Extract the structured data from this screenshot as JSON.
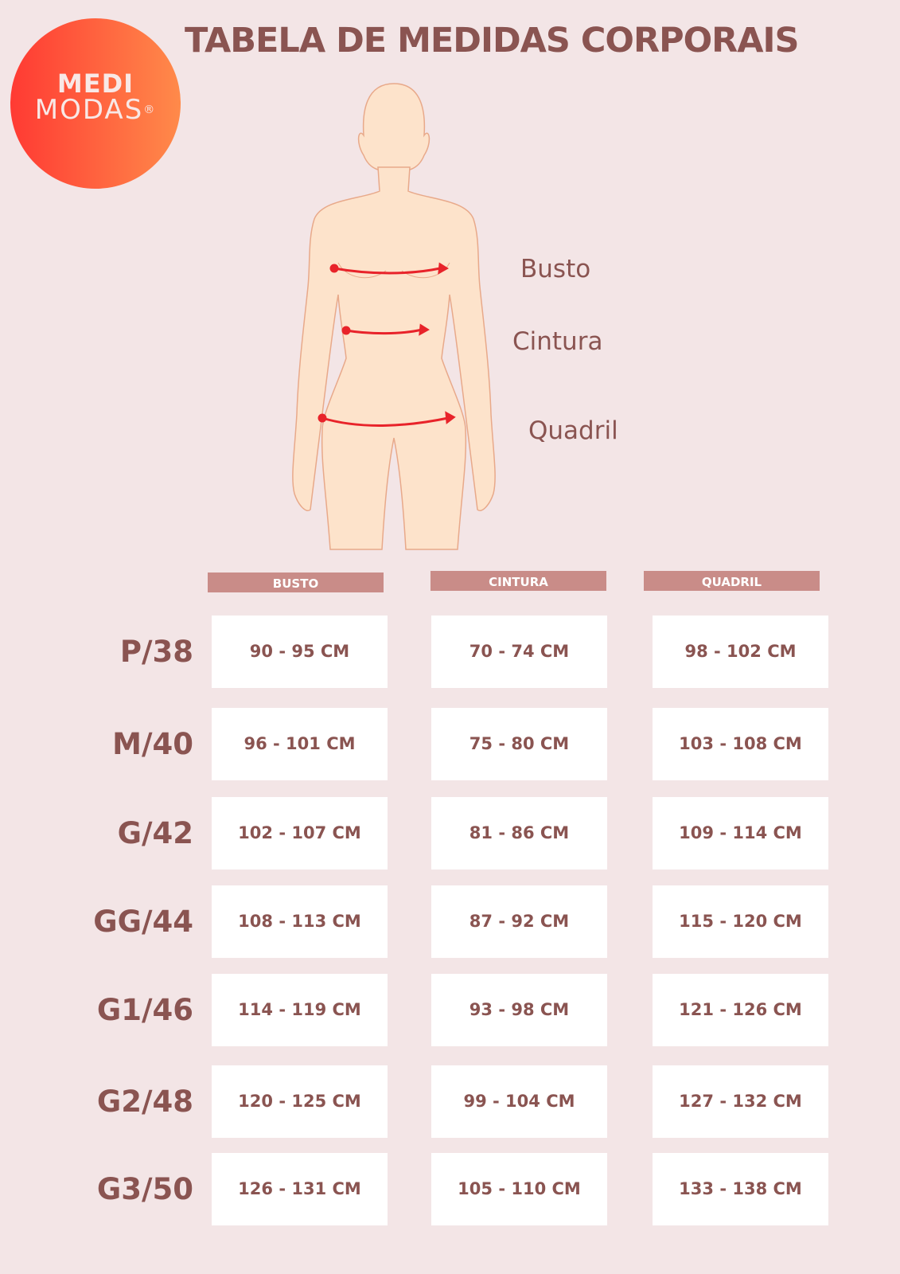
{
  "logo": {
    "line1": "MEDI",
    "line2": "MODAS",
    "mark": "®"
  },
  "title": "TABELA DE MEDIDAS CORPORAIS",
  "figure": {
    "labels": [
      "Busto",
      "Cintura",
      "Quadril"
    ]
  },
  "colors": {
    "background": "#f3e5e6",
    "text": "#8a5451",
    "header": "#c98c88",
    "arrow": "#e8232a",
    "logo_from": "#ff3a33",
    "logo_to": "#ff8a4a"
  },
  "table": {
    "headers": [
      "BUSTO",
      "CINTURA",
      "QUADRIL"
    ],
    "rows": [
      {
        "size": "P/38",
        "values": [
          "90 - 95 CM",
          "70 - 74 CM",
          "98 - 102 CM"
        ]
      },
      {
        "size": "M/40",
        "values": [
          "96  - 101 CM",
          "75 - 80 CM",
          "103 - 108 CM"
        ]
      },
      {
        "size": "G/42",
        "values": [
          "102 - 107 CM",
          "81 - 86 CM",
          "109 - 114 CM"
        ]
      },
      {
        "size": "GG/44",
        "values": [
          "108 - 113 CM",
          "87 - 92 CM",
          "115 - 120 CM"
        ]
      },
      {
        "size": "G1/46",
        "values": [
          "114 - 119 CM",
          "93 - 98 CM",
          "121 - 126 CM"
        ]
      },
      {
        "size": "G2/48",
        "values": [
          "120 - 125 CM",
          "99 - 104 CM",
          "127 - 132 CM"
        ]
      },
      {
        "size": "G3/50",
        "values": [
          "126 - 131 CM",
          "105 - 110 CM",
          "133 - 138 CM"
        ]
      }
    ]
  }
}
